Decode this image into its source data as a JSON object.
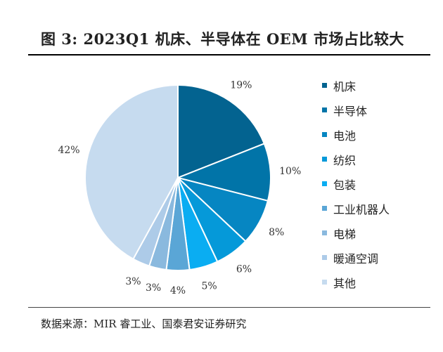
{
  "title": "图 3: 2023Q1 机床、半导体在 OEM 市场占比较大",
  "source": "数据来源：MIR 睿工业、国泰君安证券研究",
  "chart_data": {
    "type": "pie",
    "start_angle_deg": 0,
    "direction": "clockwise",
    "categories": [
      "机床",
      "半导体",
      "电池",
      "纺织",
      "包装",
      "工业机器人",
      "电梯",
      "暖通空调",
      "其他"
    ],
    "values": [
      19,
      10,
      8,
      6,
      5,
      4,
      3,
      3,
      42
    ],
    "labels": [
      "19%",
      "10%",
      "8%",
      "6%",
      "5%",
      "4%",
      "3%",
      "3%",
      "42%"
    ],
    "colors": [
      "#036390",
      "#0174a8",
      "#0686c2",
      "#0599d9",
      "#0aadf2",
      "#5aa6d6",
      "#8ab9de",
      "#adcbe8",
      "#c6dbef"
    ],
    "legend_position": "right"
  }
}
